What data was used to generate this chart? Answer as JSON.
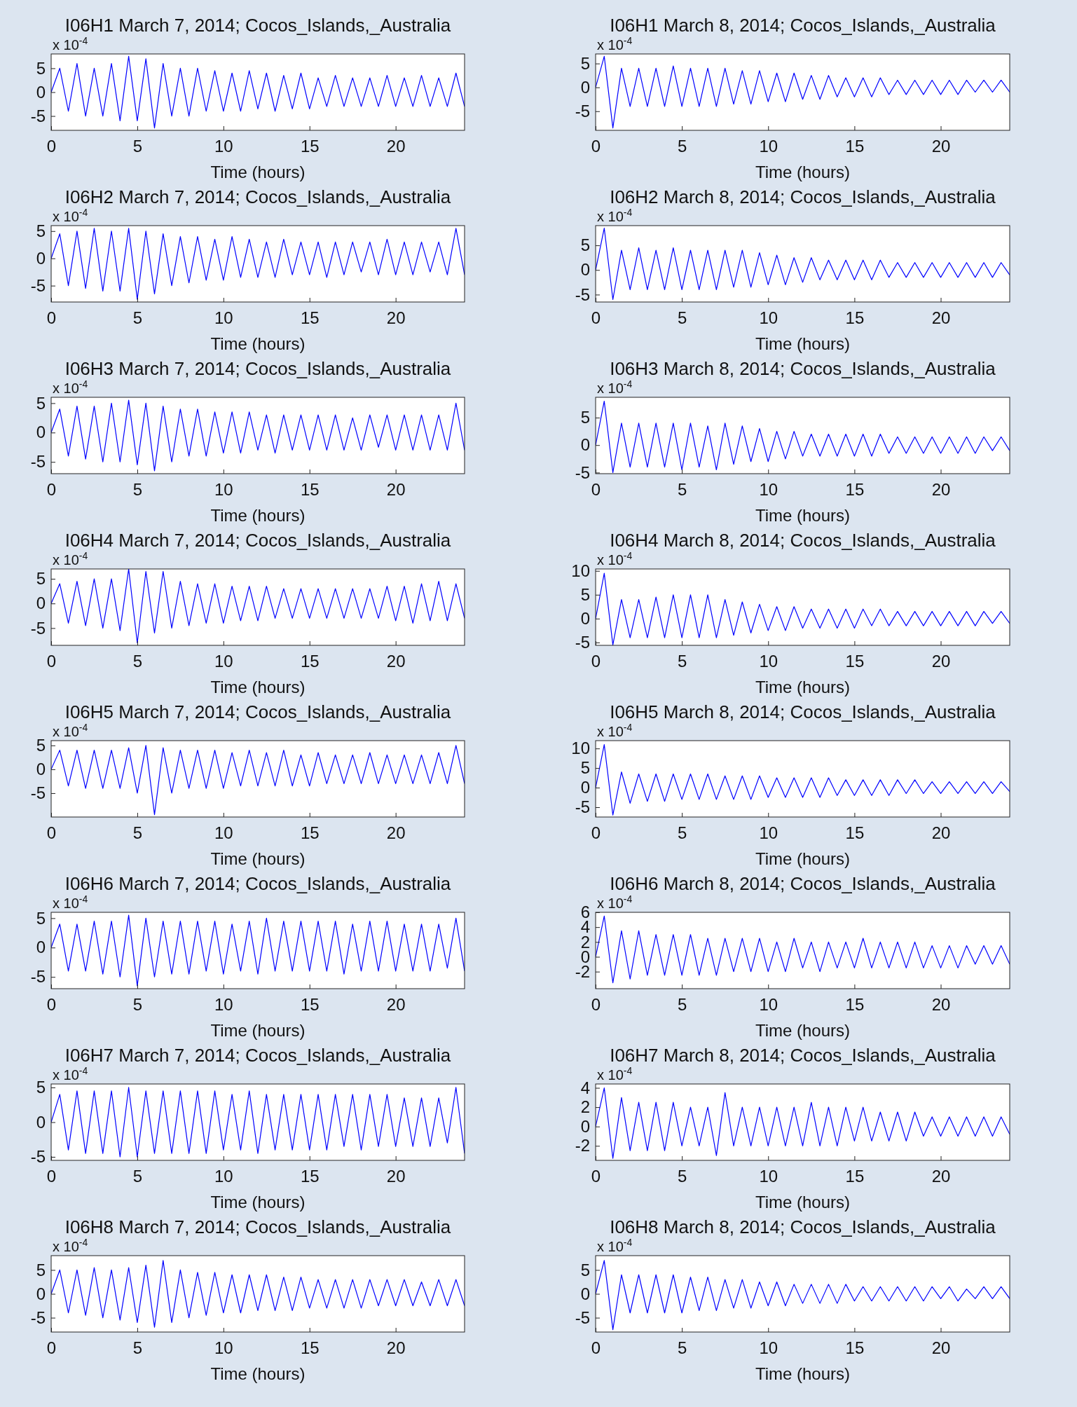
{
  "chart_data": [
    {
      "type": "line",
      "title": "I06H1 March 7, 2014; Cocos_Islands,_Australia",
      "xlabel": "Time (hours)",
      "annotations": [
        "x 10$^{-4}$"
      ],
      "xlim": [
        0,
        24
      ],
      "xticks": [
        0,
        5,
        10,
        15,
        20
      ],
      "ylim": [
        -8,
        8
      ],
      "yticks": [
        -5,
        0,
        5
      ],
      "x": [
        0,
        0.5,
        1,
        1.5,
        2,
        2.5,
        3,
        3.5,
        4,
        4.5,
        5,
        5.5,
        6,
        6.5,
        7,
        7.5,
        8,
        8.5,
        9,
        9.5,
        10,
        10.5,
        11,
        11.5,
        12,
        12.5,
        13,
        13.5,
        14,
        14.5,
        15,
        15.5,
        16,
        16.5,
        17,
        17.5,
        18,
        18.5,
        19,
        19.5,
        20,
        20.5,
        21,
        21.5,
        22,
        22.5,
        23,
        23.5,
        24
      ],
      "series": [
        {
          "color": "#0000ff",
          "values": [
            0,
            5,
            -4,
            6,
            -5,
            5,
            -5,
            6,
            -6,
            7.5,
            -6,
            7,
            -7.5,
            6,
            -5,
            5,
            -5,
            5,
            -4,
            4.5,
            -4,
            4,
            -4,
            4.5,
            -3.5,
            4,
            -4,
            3.5,
            -3.5,
            4,
            -3.5,
            3,
            -3,
            3.5,
            -3,
            3,
            -3,
            3,
            -3,
            3.5,
            -3,
            3,
            -3,
            3.5,
            -3,
            3,
            -3,
            4,
            -3
          ]
        }
      ]
    },
    {
      "type": "line",
      "title": "I06H1 March 8, 2014; Cocos_Islands,_Australia",
      "xlabel": "Time (hours)",
      "annotations": [
        "x 10$^{-4}$"
      ],
      "xlim": [
        0,
        24
      ],
      "xticks": [
        0,
        5,
        10,
        15,
        20
      ],
      "ylim": [
        -9,
        7
      ],
      "yticks": [
        -5,
        0,
        5
      ],
      "x": [
        0,
        0.5,
        1,
        1.5,
        2,
        2.5,
        3,
        3.5,
        4,
        4.5,
        5,
        5.5,
        6,
        6.5,
        7,
        7.5,
        8,
        8.5,
        9,
        9.5,
        10,
        10.5,
        11,
        11.5,
        12,
        12.5,
        13,
        13.5,
        14,
        14.5,
        15,
        15.5,
        16,
        16.5,
        17,
        17.5,
        18,
        18.5,
        19,
        19.5,
        20,
        20.5,
        21,
        21.5,
        22,
        22.5,
        23,
        23.5,
        24
      ],
      "series": [
        {
          "color": "#0000ff",
          "values": [
            0,
            6.5,
            -8.5,
            4,
            -4,
            4,
            -4,
            4,
            -4,
            4.5,
            -4,
            4,
            -4,
            4,
            -4,
            4,
            -3.5,
            3.5,
            -3.5,
            3.5,
            -3,
            3,
            -3,
            3,
            -2.5,
            2.5,
            -2.5,
            2.5,
            -2,
            2,
            -2,
            2,
            -2,
            2,
            -1.5,
            1.5,
            -1.5,
            1.5,
            -1.5,
            1.5,
            -1.5,
            1.5,
            -1.5,
            1.5,
            -1,
            1.5,
            -1,
            1.5,
            -1
          ]
        }
      ]
    },
    {
      "type": "line",
      "title": "I06H2 March 7, 2014; Cocos_Islands,_Australia",
      "xlabel": "Time (hours)",
      "annotations": [
        "x 10$^{-4}$"
      ],
      "xlim": [
        0,
        24
      ],
      "xticks": [
        0,
        5,
        10,
        15,
        20
      ],
      "ylim": [
        -8,
        6
      ],
      "yticks": [
        -5,
        0,
        5
      ],
      "x": [
        0,
        0.5,
        1,
        1.5,
        2,
        2.5,
        3,
        3.5,
        4,
        4.5,
        5,
        5.5,
        6,
        6.5,
        7,
        7.5,
        8,
        8.5,
        9,
        9.5,
        10,
        10.5,
        11,
        11.5,
        12,
        12.5,
        13,
        13.5,
        14,
        14.5,
        15,
        15.5,
        16,
        16.5,
        17,
        17.5,
        18,
        18.5,
        19,
        19.5,
        20,
        20.5,
        21,
        21.5,
        22,
        22.5,
        23,
        23.5,
        24
      ],
      "series": [
        {
          "color": "#0000ff",
          "values": [
            0,
            4.5,
            -5,
            5,
            -5.5,
            5.5,
            -6,
            5,
            -6,
            5.5,
            -7.5,
            5,
            -6.5,
            4.5,
            -5,
            4,
            -4.5,
            4,
            -4,
            3.5,
            -4,
            4,
            -3.5,
            3.5,
            -3.5,
            3,
            -3.5,
            3.5,
            -3,
            3,
            -3,
            3,
            -3.5,
            3,
            -3,
            3,
            -2.5,
            3,
            -3,
            3.5,
            -3,
            3,
            -3,
            3,
            -2.5,
            3,
            -3,
            5.5,
            -3
          ]
        }
      ]
    },
    {
      "type": "line",
      "title": "I06H2 March 8, 2014; Cocos_Islands,_Australia",
      "xlabel": "Time (hours)",
      "annotations": [
        "x 10$^{-4}$"
      ],
      "xlim": [
        0,
        24
      ],
      "xticks": [
        0,
        5,
        10,
        15,
        20
      ],
      "ylim": [
        -6.5,
        9
      ],
      "yticks": [
        -5,
        0,
        5
      ],
      "x": [
        0,
        0.5,
        1,
        1.5,
        2,
        2.5,
        3,
        3.5,
        4,
        4.5,
        5,
        5.5,
        6,
        6.5,
        7,
        7.5,
        8,
        8.5,
        9,
        9.5,
        10,
        10.5,
        11,
        11.5,
        12,
        12.5,
        13,
        13.5,
        14,
        14.5,
        15,
        15.5,
        16,
        16.5,
        17,
        17.5,
        18,
        18.5,
        19,
        19.5,
        20,
        20.5,
        21,
        21.5,
        22,
        22.5,
        23,
        23.5,
        24
      ],
      "series": [
        {
          "color": "#0000ff",
          "values": [
            0,
            8.5,
            -6,
            4,
            -4,
            4.5,
            -4,
            4,
            -4,
            4.5,
            -4,
            4,
            -4,
            4,
            -4,
            4,
            -3.5,
            4,
            -3.5,
            3.5,
            -3,
            3,
            -3,
            2.5,
            -2.5,
            2.5,
            -2,
            2,
            -2,
            2,
            -2,
            2,
            -2,
            2,
            -1.5,
            1.5,
            -1.5,
            1.5,
            -1.5,
            1.5,
            -1.5,
            1.5,
            -1.5,
            1.5,
            -1.5,
            1.5,
            -1.5,
            1.5,
            -1
          ]
        }
      ]
    },
    {
      "type": "line",
      "title": "I06H3 March 7, 2014; Cocos_Islands,_Australia",
      "xlabel": "Time (hours)",
      "annotations": [
        "x 10$^{-4}$"
      ],
      "xlim": [
        0,
        24
      ],
      "xticks": [
        0,
        5,
        10,
        15,
        20
      ],
      "ylim": [
        -7,
        6
      ],
      "yticks": [
        -5,
        0,
        5
      ],
      "x": [
        0,
        0.5,
        1,
        1.5,
        2,
        2.5,
        3,
        3.5,
        4,
        4.5,
        5,
        5.5,
        6,
        6.5,
        7,
        7.5,
        8,
        8.5,
        9,
        9.5,
        10,
        10.5,
        11,
        11.5,
        12,
        12.5,
        13,
        13.5,
        14,
        14.5,
        15,
        15.5,
        16,
        16.5,
        17,
        17.5,
        18,
        18.5,
        19,
        19.5,
        20,
        20.5,
        21,
        21.5,
        22,
        22.5,
        23,
        23.5,
        24
      ],
      "series": [
        {
          "color": "#0000ff",
          "values": [
            0,
            4,
            -4,
            4.5,
            -4.5,
            4.5,
            -5,
            5,
            -5,
            5.5,
            -5.5,
            5,
            -6.5,
            4.5,
            -5,
            4,
            -4,
            4,
            -4,
            3.5,
            -3.5,
            3.5,
            -3.5,
            3.5,
            -3,
            3,
            -3.5,
            3,
            -3,
            3,
            -3,
            3,
            -3,
            3,
            -3,
            2.5,
            -3,
            3,
            -2.5,
            3,
            -3,
            3,
            -3,
            3,
            -3,
            3,
            -3,
            5,
            -3
          ]
        }
      ]
    },
    {
      "type": "line",
      "title": "I06H3 March 8, 2014; Cocos_Islands,_Australia",
      "xlabel": "Time (hours)",
      "annotations": [
        "x 10$^{-4}$"
      ],
      "xlim": [
        0,
        24
      ],
      "xticks": [
        0,
        5,
        10,
        15,
        20
      ],
      "ylim": [
        -5.2,
        8.7
      ],
      "yticks": [
        -5,
        0,
        5
      ],
      "x": [
        0,
        0.5,
        1,
        1.5,
        2,
        2.5,
        3,
        3.5,
        4,
        4.5,
        5,
        5.5,
        6,
        6.5,
        7,
        7.5,
        8,
        8.5,
        9,
        9.5,
        10,
        10.5,
        11,
        11.5,
        12,
        12.5,
        13,
        13.5,
        14,
        14.5,
        15,
        15.5,
        16,
        16.5,
        17,
        17.5,
        18,
        18.5,
        19,
        19.5,
        20,
        20.5,
        21,
        21.5,
        22,
        22.5,
        23,
        23.5,
        24
      ],
      "series": [
        {
          "color": "#0000ff",
          "values": [
            0,
            8,
            -5,
            4,
            -4,
            4,
            -4,
            4,
            -4,
            4,
            -4.5,
            4,
            -4,
            3.5,
            -4.5,
            4,
            -3.5,
            3.5,
            -3,
            3,
            -3,
            2.5,
            -2.5,
            2.5,
            -2,
            2,
            -2,
            2,
            -2,
            2,
            -2,
            2,
            -2,
            2,
            -1.5,
            1.5,
            -1.5,
            1.5,
            -1.5,
            1.5,
            -1.5,
            1.5,
            -1.5,
            1.5,
            -1.5,
            1.5,
            -1,
            1.5,
            -1
          ]
        }
      ]
    },
    {
      "type": "line",
      "title": "I06H4 March 7, 2014; Cocos_Islands,_Australia",
      "xlabel": "Time (hours)",
      "annotations": [
        "x 10$^{-4}$"
      ],
      "xlim": [
        0,
        24
      ],
      "xticks": [
        0,
        5,
        10,
        15,
        20
      ],
      "ylim": [
        -8.5,
        7
      ],
      "yticks": [
        -5,
        0,
        5
      ],
      "x": [
        0,
        0.5,
        1,
        1.5,
        2,
        2.5,
        3,
        3.5,
        4,
        4.5,
        5,
        5.5,
        6,
        6.5,
        7,
        7.5,
        8,
        8.5,
        9,
        9.5,
        10,
        10.5,
        11,
        11.5,
        12,
        12.5,
        13,
        13.5,
        14,
        14.5,
        15,
        15.5,
        16,
        16.5,
        17,
        17.5,
        18,
        18.5,
        19,
        19.5,
        20,
        20.5,
        21,
        21.5,
        22,
        22.5,
        23,
        23.5,
        24
      ],
      "series": [
        {
          "color": "#0000ff",
          "values": [
            0,
            4,
            -4,
            4.5,
            -4.5,
            5,
            -5,
            5,
            -5.5,
            7,
            -8,
            6.5,
            -6,
            6.5,
            -5,
            4.5,
            -4.5,
            4,
            -4,
            4,
            -4,
            3.5,
            -3.5,
            3.5,
            -3.5,
            3.5,
            -3,
            3,
            -3,
            3,
            -3,
            3,
            -3,
            3,
            -3,
            3,
            -3,
            3,
            -3,
            3.5,
            -3.5,
            3.5,
            -4,
            4,
            -3.5,
            4.5,
            -3.5,
            4,
            -3
          ]
        }
      ]
    },
    {
      "type": "line",
      "title": "I06H4 March 8, 2014; Cocos_Islands,_Australia",
      "xlabel": "Time (hours)",
      "annotations": [
        "x 10$^{-4}$"
      ],
      "xlim": [
        0,
        24
      ],
      "xticks": [
        0,
        5,
        10,
        15,
        20
      ],
      "ylim": [
        -5.6,
        10.4
      ],
      "yticks": [
        -5,
        0,
        5,
        10
      ],
      "x": [
        0,
        0.5,
        1,
        1.5,
        2,
        2.5,
        3,
        3.5,
        4,
        4.5,
        5,
        5.5,
        6,
        6.5,
        7,
        7.5,
        8,
        8.5,
        9,
        9.5,
        10,
        10.5,
        11,
        11.5,
        12,
        12.5,
        13,
        13.5,
        14,
        14.5,
        15,
        15.5,
        16,
        16.5,
        17,
        17.5,
        18,
        18.5,
        19,
        19.5,
        20,
        20.5,
        21,
        21.5,
        22,
        22.5,
        23,
        23.5,
        24
      ],
      "series": [
        {
          "color": "#0000ff",
          "values": [
            0,
            9.5,
            -5.5,
            4,
            -4,
            4,
            -4,
            4.5,
            -4,
            5,
            -4,
            5,
            -4,
            5,
            -4,
            4,
            -3.5,
            3.5,
            -3,
            3,
            -2.5,
            2.5,
            -2.5,
            2.5,
            -2,
            2,
            -2,
            2,
            -2,
            2,
            -2,
            2,
            -1.5,
            2,
            -1.5,
            1.5,
            -1.5,
            1.5,
            -1.5,
            1.5,
            -1.5,
            1.5,
            -1.5,
            1.5,
            -1.5,
            1.5,
            -1,
            1.5,
            -1
          ]
        }
      ]
    },
    {
      "type": "line",
      "title": "I06H5 March 7, 2014; Cocos_Islands,_Australia",
      "xlabel": "Time (hours)",
      "annotations": [
        "x 10$^{-4}$"
      ],
      "xlim": [
        0,
        24
      ],
      "xticks": [
        0,
        5,
        10,
        15,
        20
      ],
      "ylim": [
        -10,
        6
      ],
      "yticks": [
        -5,
        0,
        5
      ],
      "x": [
        0,
        0.5,
        1,
        1.5,
        2,
        2.5,
        3,
        3.5,
        4,
        4.5,
        5,
        5.5,
        6,
        6.5,
        7,
        7.5,
        8,
        8.5,
        9,
        9.5,
        10,
        10.5,
        11,
        11.5,
        12,
        12.5,
        13,
        13.5,
        14,
        14.5,
        15,
        15.5,
        16,
        16.5,
        17,
        17.5,
        18,
        18.5,
        19,
        19.5,
        20,
        20.5,
        21,
        21.5,
        22,
        22.5,
        23,
        23.5,
        24
      ],
      "series": [
        {
          "color": "#0000ff",
          "values": [
            0,
            4,
            -3.5,
            4,
            -4,
            4,
            -4,
            4,
            -4,
            4.5,
            -5,
            5,
            -9.5,
            4.5,
            -5,
            4,
            -4,
            4,
            -4,
            4,
            -4,
            3.5,
            -3.5,
            4,
            -3.5,
            3.5,
            -3.5,
            4,
            -3.5,
            3,
            -3.5,
            3.5,
            -3,
            3,
            -3,
            3,
            -3,
            3.5,
            -3,
            3,
            -3,
            3,
            -3,
            3,
            -3,
            3.5,
            -3,
            5,
            -3
          ]
        }
      ]
    },
    {
      "type": "line",
      "title": "I06H5 March 8, 2014; Cocos_Islands,_Australia",
      "xlabel": "Time (hours)",
      "annotations": [
        "x 10$^{-4}$"
      ],
      "xlim": [
        0,
        24
      ],
      "xticks": [
        0,
        5,
        10,
        15,
        20
      ],
      "ylim": [
        -7.5,
        12
      ],
      "yticks": [
        -5,
        0,
        5,
        10
      ],
      "x": [
        0,
        0.5,
        1,
        1.5,
        2,
        2.5,
        3,
        3.5,
        4,
        4.5,
        5,
        5.5,
        6,
        6.5,
        7,
        7.5,
        8,
        8.5,
        9,
        9.5,
        10,
        10.5,
        11,
        11.5,
        12,
        12.5,
        13,
        13.5,
        14,
        14.5,
        15,
        15.5,
        16,
        16.5,
        17,
        17.5,
        18,
        18.5,
        19,
        19.5,
        20,
        20.5,
        21,
        21.5,
        22,
        22.5,
        23,
        23.5,
        24
      ],
      "series": [
        {
          "color": "#0000ff",
          "values": [
            0,
            11,
            -7,
            4,
            -4,
            3.5,
            -3.5,
            3.5,
            -3.5,
            3.5,
            -3,
            3.5,
            -3,
            3.5,
            -3,
            3,
            -3,
            3,
            -3,
            3,
            -2.5,
            2.5,
            -2.5,
            2.5,
            -2.5,
            2.5,
            -2.5,
            2.5,
            -2,
            2,
            -2,
            2,
            -2,
            2,
            -2,
            2,
            -1.5,
            2,
            -1.5,
            1.5,
            -1.5,
            1.5,
            -1.5,
            1.5,
            -1.5,
            1.5,
            -1.5,
            1.5,
            -1
          ]
        }
      ]
    },
    {
      "type": "line",
      "title": "I06H6 March 7, 2014; Cocos_Islands,_Australia",
      "xlabel": "Time (hours)",
      "annotations": [
        "x 10$^{-4}$"
      ],
      "xlim": [
        0,
        24
      ],
      "xticks": [
        0,
        5,
        10,
        15,
        20
      ],
      "ylim": [
        -7,
        6
      ],
      "yticks": [
        -5,
        0,
        5
      ],
      "x": [
        0,
        0.5,
        1,
        1.5,
        2,
        2.5,
        3,
        3.5,
        4,
        4.5,
        5,
        5.5,
        6,
        6.5,
        7,
        7.5,
        8,
        8.5,
        9,
        9.5,
        10,
        10.5,
        11,
        11.5,
        12,
        12.5,
        13,
        13.5,
        14,
        14.5,
        15,
        15.5,
        16,
        16.5,
        17,
        17.5,
        18,
        18.5,
        19,
        19.5,
        20,
        20.5,
        21,
        21.5,
        22,
        22.5,
        23,
        23.5,
        24
      ],
      "series": [
        {
          "color": "#0000ff",
          "values": [
            0,
            4,
            -4,
            4,
            -4,
            4.5,
            -4.5,
            4.5,
            -5,
            5.5,
            -6.5,
            5,
            -5,
            4.5,
            -4.5,
            4.5,
            -4.5,
            4.5,
            -4,
            4.5,
            -4.5,
            4,
            -4,
            4.5,
            -4.5,
            5,
            -4,
            4.5,
            -4,
            4.5,
            -4,
            4.5,
            -4,
            4.5,
            -4.5,
            4,
            -4,
            4.5,
            -4,
            4.5,
            -4,
            4,
            -4,
            4,
            -4,
            4,
            -3.5,
            5,
            -4
          ]
        }
      ]
    },
    {
      "type": "line",
      "title": "I06H6 March 8, 2014; Cocos_Islands,_Australia",
      "xlabel": "Time (hours)",
      "annotations": [
        "x 10$^{-4}$"
      ],
      "xlim": [
        0,
        24
      ],
      "xticks": [
        0,
        5,
        10,
        15,
        20
      ],
      "ylim": [
        -4.3,
        6
      ],
      "yticks": [
        -2,
        0,
        2,
        4,
        6
      ],
      "x": [
        0,
        0.5,
        1,
        1.5,
        2,
        2.5,
        3,
        3.5,
        4,
        4.5,
        5,
        5.5,
        6,
        6.5,
        7,
        7.5,
        8,
        8.5,
        9,
        9.5,
        10,
        10.5,
        11,
        11.5,
        12,
        12.5,
        13,
        13.5,
        14,
        14.5,
        15,
        15.5,
        16,
        16.5,
        17,
        17.5,
        18,
        18.5,
        19,
        19.5,
        20,
        20.5,
        21,
        21.5,
        22,
        22.5,
        23,
        23.5,
        24
      ],
      "series": [
        {
          "color": "#0000ff",
          "values": [
            0,
            5.5,
            -3.5,
            3.5,
            -3,
            3.5,
            -2.5,
            3,
            -2.5,
            3,
            -2.5,
            3,
            -2.5,
            2.5,
            -2.5,
            2.5,
            -2,
            2.5,
            -2,
            2.5,
            -2,
            2,
            -2,
            2.5,
            -1.5,
            2,
            -2,
            2,
            -1.5,
            2,
            -1.5,
            2.5,
            -1.5,
            2,
            -1.5,
            2,
            -1.5,
            2,
            -1.5,
            1.5,
            -1.5,
            1.5,
            -1.5,
            1.5,
            -1,
            1.5,
            -1,
            1.5,
            -1
          ]
        }
      ]
    },
    {
      "type": "line",
      "title": "I06H7 March 7, 2014; Cocos_Islands,_Australia",
      "xlabel": "Time (hours)",
      "annotations": [
        "x 10$^{-4}$"
      ],
      "xlim": [
        0,
        24
      ],
      "xticks": [
        0,
        5,
        10,
        15,
        20
      ],
      "ylim": [
        -5.5,
        5.5
      ],
      "yticks": [
        -5,
        0,
        5
      ],
      "x": [
        0,
        0.5,
        1,
        1.5,
        2,
        2.5,
        3,
        3.5,
        4,
        4.5,
        5,
        5.5,
        6,
        6.5,
        7,
        7.5,
        8,
        8.5,
        9,
        9.5,
        10,
        10.5,
        11,
        11.5,
        12,
        12.5,
        13,
        13.5,
        14,
        14.5,
        15,
        15.5,
        16,
        16.5,
        17,
        17.5,
        18,
        18.5,
        19,
        19.5,
        20,
        20.5,
        21,
        21.5,
        22,
        22.5,
        23,
        23.5,
        24
      ],
      "series": [
        {
          "color": "#0000ff",
          "values": [
            0,
            4,
            -4,
            4.5,
            -4.5,
            4.5,
            -4.5,
            4.5,
            -5,
            5,
            -5,
            4.5,
            -4.5,
            4.5,
            -4.5,
            4.5,
            -4.5,
            4.5,
            -4.5,
            4.5,
            -4,
            4,
            -4,
            4.5,
            -4.5,
            4,
            -4,
            4,
            -4,
            4,
            -4,
            4,
            -4,
            4,
            -3.5,
            4,
            -4,
            4,
            -3.5,
            4,
            -3.5,
            3.5,
            -3.5,
            3.5,
            -3.5,
            3.5,
            -3,
            5,
            -4.5
          ]
        }
      ]
    },
    {
      "type": "line",
      "title": "I06H7 March 8, 2014; Cocos_Islands,_Australia",
      "xlabel": "Time (hours)",
      "annotations": [
        "x 10$^{-4}$"
      ],
      "xlim": [
        0,
        24
      ],
      "xticks": [
        0,
        5,
        10,
        15,
        20
      ],
      "ylim": [
        -3.5,
        4.4
      ],
      "yticks": [
        -2,
        0,
        2,
        4
      ],
      "x": [
        0,
        0.5,
        1,
        1.5,
        2,
        2.5,
        3,
        3.5,
        4,
        4.5,
        5,
        5.5,
        6,
        6.5,
        7,
        7.5,
        8,
        8.5,
        9,
        9.5,
        10,
        10.5,
        11,
        11.5,
        12,
        12.5,
        13,
        13.5,
        14,
        14.5,
        15,
        15.5,
        16,
        16.5,
        17,
        17.5,
        18,
        18.5,
        19,
        19.5,
        20,
        20.5,
        21,
        21.5,
        22,
        22.5,
        23,
        23.5,
        24
      ],
      "series": [
        {
          "color": "#0000ff",
          "values": [
            0,
            4,
            -3.3,
            3,
            -2.5,
            2.5,
            -2.5,
            2.5,
            -2.5,
            2.5,
            -2,
            2,
            -2,
            2,
            -3,
            3.5,
            -2,
            2,
            -2,
            2,
            -2,
            2,
            -2,
            2,
            -2,
            2.5,
            -2,
            2,
            -2,
            2,
            -1.5,
            2,
            -1.5,
            1.5,
            -1.5,
            1.5,
            -1.5,
            1.5,
            -1,
            1,
            -1,
            1,
            -1,
            1,
            -1,
            1,
            -1,
            1,
            -0.8
          ]
        }
      ]
    },
    {
      "type": "line",
      "title": "I06H8 March 7, 2014; Cocos_Islands,_Australia",
      "xlabel": "Time (hours)",
      "annotations": [
        "x 10$^{-4}$"
      ],
      "xlim": [
        0,
        24
      ],
      "xticks": [
        0,
        5,
        10,
        15,
        20
      ],
      "ylim": [
        -8,
        8
      ],
      "yticks": [
        -5,
        0,
        5
      ],
      "x": [
        0,
        0.5,
        1,
        1.5,
        2,
        2.5,
        3,
        3.5,
        4,
        4.5,
        5,
        5.5,
        6,
        6.5,
        7,
        7.5,
        8,
        8.5,
        9,
        9.5,
        10,
        10.5,
        11,
        11.5,
        12,
        12.5,
        13,
        13.5,
        14,
        14.5,
        15,
        15.5,
        16,
        16.5,
        17,
        17.5,
        18,
        18.5,
        19,
        19.5,
        20,
        20.5,
        21,
        21.5,
        22,
        22.5,
        23,
        23.5,
        24
      ],
      "series": [
        {
          "color": "#0000ff",
          "values": [
            0,
            5,
            -4,
            5,
            -4.5,
            5.5,
            -5,
            5,
            -5.5,
            5.5,
            -6,
            6,
            -7,
            7,
            -6,
            5,
            -5,
            4.5,
            -4.5,
            4.5,
            -4,
            4,
            -4,
            4,
            -3.5,
            4,
            -3.5,
            3.5,
            -3.5,
            3.5,
            -3,
            3,
            -3,
            3,
            -3,
            3,
            -3,
            3,
            -2.5,
            3,
            -2.5,
            3,
            -2.5,
            2.5,
            -2.5,
            3,
            -2.5,
            3,
            -2.5
          ]
        }
      ]
    },
    {
      "type": "line",
      "title": "I06H8 March 8, 2014; Cocos_Islands,_Australia",
      "xlabel": "Time (hours)",
      "annotations": [
        "x 10$^{-4}$"
      ],
      "xlim": [
        0,
        24
      ],
      "xticks": [
        0,
        5,
        10,
        15,
        20
      ],
      "ylim": [
        -8,
        8
      ],
      "yticks": [
        -5,
        0,
        5
      ],
      "x": [
        0,
        0.5,
        1,
        1.5,
        2,
        2.5,
        3,
        3.5,
        4,
        4.5,
        5,
        5.5,
        6,
        6.5,
        7,
        7.5,
        8,
        8.5,
        9,
        9.5,
        10,
        10.5,
        11,
        11.5,
        12,
        12.5,
        13,
        13.5,
        14,
        14.5,
        15,
        15.5,
        16,
        16.5,
        17,
        17.5,
        18,
        18.5,
        19,
        19.5,
        20,
        20.5,
        21,
        21.5,
        22,
        22.5,
        23,
        23.5,
        24
      ],
      "series": [
        {
          "color": "#0000ff",
          "values": [
            0,
            7,
            -7.5,
            4,
            -4,
            4,
            -4,
            4,
            -4,
            4,
            -4,
            3.5,
            -3.5,
            3.5,
            -3.5,
            3,
            -3,
            3,
            -3,
            2.5,
            -2.5,
            2.5,
            -2.5,
            2,
            -2,
            2,
            -2,
            2,
            -2,
            2,
            -1.5,
            1.5,
            -1.5,
            1.5,
            -1.5,
            1.5,
            -1.5,
            1.5,
            -1.5,
            1.5,
            -1,
            1.5,
            -1.5,
            1,
            -1,
            1.5,
            -1,
            1.5,
            -1
          ]
        }
      ]
    }
  ]
}
